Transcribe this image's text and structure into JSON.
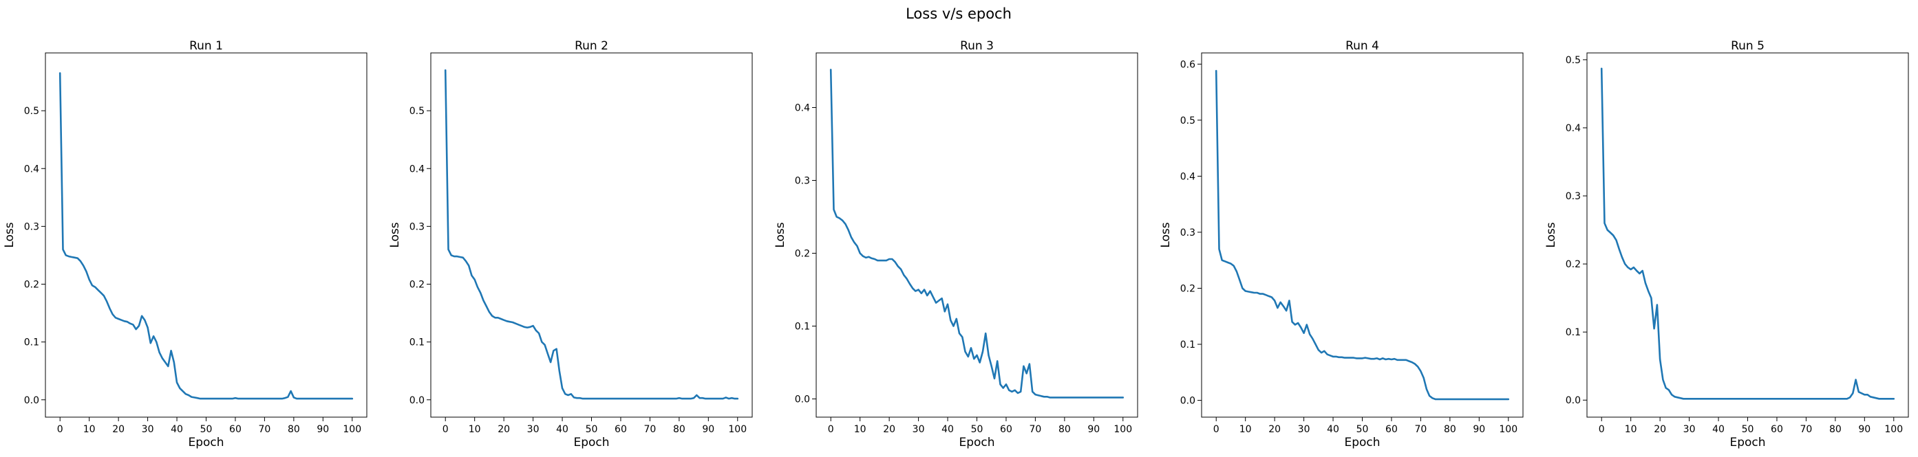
{
  "figure_title": "Loss v/s epoch",
  "chart_data": [
    {
      "type": "line",
      "title": "Run 1",
      "xlabel": "Epoch",
      "ylabel": "Loss",
      "xlim": [
        -5,
        105
      ],
      "ylim": [
        -0.03,
        0.6
      ],
      "grid": false,
      "legend": "none",
      "series_color": "#1f77b4",
      "xticks": [
        0,
        10,
        20,
        30,
        40,
        50,
        60,
        70,
        80,
        90,
        100
      ],
      "yticks": [
        0.0,
        0.1,
        0.2,
        0.3,
        0.4,
        0.5
      ],
      "ytick_labels": [
        "0.0",
        "0.1",
        "0.2",
        "0.3",
        "0.4",
        "0.5"
      ],
      "x": [
        0,
        1,
        2,
        3,
        4,
        5,
        6,
        7,
        8,
        9,
        10,
        11,
        12,
        13,
        14,
        15,
        16,
        17,
        18,
        19,
        20,
        21,
        22,
        23,
        24,
        25,
        26,
        27,
        28,
        29,
        30,
        31,
        32,
        33,
        34,
        35,
        36,
        37,
        38,
        39,
        40,
        41,
        42,
        43,
        44,
        45,
        46,
        47,
        48,
        49,
        50,
        51,
        52,
        53,
        54,
        55,
        56,
        57,
        58,
        59,
        60,
        61,
        62,
        63,
        64,
        65,
        66,
        67,
        68,
        69,
        70,
        71,
        72,
        73,
        74,
        75,
        76,
        77,
        78,
        79,
        80,
        81,
        82,
        83,
        84,
        85,
        86,
        87,
        88,
        89,
        90,
        91,
        92,
        93,
        94,
        95,
        96,
        97,
        98,
        99,
        100
      ],
      "y": [
        0.565,
        0.26,
        0.25,
        0.248,
        0.247,
        0.246,
        0.245,
        0.24,
        0.232,
        0.222,
        0.208,
        0.198,
        0.195,
        0.19,
        0.185,
        0.18,
        0.17,
        0.158,
        0.148,
        0.142,
        0.14,
        0.138,
        0.136,
        0.135,
        0.132,
        0.13,
        0.122,
        0.128,
        0.145,
        0.138,
        0.125,
        0.098,
        0.11,
        0.1,
        0.082,
        0.072,
        0.065,
        0.058,
        0.085,
        0.065,
        0.03,
        0.02,
        0.015,
        0.01,
        0.008,
        0.005,
        0.004,
        0.003,
        0.002,
        0.002,
        0.002,
        0.002,
        0.002,
        0.002,
        0.002,
        0.002,
        0.002,
        0.002,
        0.002,
        0.002,
        0.003,
        0.002,
        0.002,
        0.002,
        0.002,
        0.002,
        0.002,
        0.002,
        0.002,
        0.002,
        0.002,
        0.002,
        0.002,
        0.002,
        0.002,
        0.002,
        0.002,
        0.003,
        0.005,
        0.015,
        0.004,
        0.002,
        0.002,
        0.002,
        0.002,
        0.002,
        0.002,
        0.002,
        0.002,
        0.002,
        0.002,
        0.002,
        0.002,
        0.002,
        0.002,
        0.002,
        0.002,
        0.002,
        0.002,
        0.002,
        0.002
      ]
    },
    {
      "type": "line",
      "title": "Run 2",
      "xlabel": "Epoch",
      "ylabel": "Loss",
      "xlim": [
        -5,
        105
      ],
      "ylim": [
        -0.03,
        0.6
      ],
      "grid": false,
      "legend": "none",
      "series_color": "#1f77b4",
      "xticks": [
        0,
        10,
        20,
        30,
        40,
        50,
        60,
        70,
        80,
        90,
        100
      ],
      "yticks": [
        0.0,
        0.1,
        0.2,
        0.3,
        0.4,
        0.5
      ],
      "ytick_labels": [
        "0.0",
        "0.1",
        "0.2",
        "0.3",
        "0.4",
        "0.5"
      ],
      "x": [
        0,
        1,
        2,
        3,
        4,
        5,
        6,
        7,
        8,
        9,
        10,
        11,
        12,
        13,
        14,
        15,
        16,
        17,
        18,
        19,
        20,
        21,
        22,
        23,
        24,
        25,
        26,
        27,
        28,
        29,
        30,
        31,
        32,
        33,
        34,
        35,
        36,
        37,
        38,
        39,
        40,
        41,
        42,
        43,
        44,
        45,
        46,
        47,
        48,
        49,
        50,
        51,
        52,
        53,
        54,
        55,
        56,
        57,
        58,
        59,
        60,
        61,
        62,
        63,
        64,
        65,
        66,
        67,
        68,
        69,
        70,
        71,
        72,
        73,
        74,
        75,
        76,
        77,
        78,
        79,
        80,
        81,
        82,
        83,
        84,
        85,
        86,
        87,
        88,
        89,
        90,
        91,
        92,
        93,
        94,
        95,
        96,
        97,
        98,
        99,
        100
      ],
      "y": [
        0.57,
        0.26,
        0.25,
        0.248,
        0.248,
        0.247,
        0.246,
        0.24,
        0.232,
        0.215,
        0.208,
        0.195,
        0.185,
        0.172,
        0.162,
        0.152,
        0.145,
        0.142,
        0.142,
        0.14,
        0.138,
        0.136,
        0.135,
        0.134,
        0.132,
        0.13,
        0.128,
        0.126,
        0.125,
        0.126,
        0.128,
        0.12,
        0.115,
        0.1,
        0.095,
        0.08,
        0.065,
        0.085,
        0.088,
        0.05,
        0.02,
        0.01,
        0.008,
        0.01,
        0.004,
        0.003,
        0.003,
        0.002,
        0.002,
        0.002,
        0.002,
        0.002,
        0.002,
        0.002,
        0.002,
        0.002,
        0.002,
        0.002,
        0.002,
        0.002,
        0.002,
        0.002,
        0.002,
        0.002,
        0.002,
        0.002,
        0.002,
        0.002,
        0.002,
        0.002,
        0.002,
        0.002,
        0.002,
        0.002,
        0.002,
        0.002,
        0.002,
        0.002,
        0.002,
        0.002,
        0.003,
        0.002,
        0.002,
        0.002,
        0.002,
        0.003,
        0.008,
        0.003,
        0.003,
        0.002,
        0.002,
        0.002,
        0.002,
        0.002,
        0.002,
        0.002,
        0.004,
        0.002,
        0.003,
        0.002,
        0.002
      ]
    },
    {
      "type": "line",
      "title": "Run 3",
      "xlabel": "Epoch",
      "ylabel": "Loss",
      "xlim": [
        -5,
        105
      ],
      "ylim": [
        -0.025,
        0.475
      ],
      "grid": false,
      "legend": "none",
      "series_color": "#1f77b4",
      "xticks": [
        0,
        10,
        20,
        30,
        40,
        50,
        60,
        70,
        80,
        90,
        100
      ],
      "yticks": [
        0.0,
        0.1,
        0.2,
        0.3,
        0.4
      ],
      "ytick_labels": [
        "0.0",
        "0.1",
        "0.2",
        "0.3",
        "0.4"
      ],
      "x": [
        0,
        1,
        2,
        3,
        4,
        5,
        6,
        7,
        8,
        9,
        10,
        11,
        12,
        13,
        14,
        15,
        16,
        17,
        18,
        19,
        20,
        21,
        22,
        23,
        24,
        25,
        26,
        27,
        28,
        29,
        30,
        31,
        32,
        33,
        34,
        35,
        36,
        37,
        38,
        39,
        40,
        41,
        42,
        43,
        44,
        45,
        46,
        47,
        48,
        49,
        50,
        51,
        52,
        53,
        54,
        55,
        56,
        57,
        58,
        59,
        60,
        61,
        62,
        63,
        64,
        65,
        66,
        67,
        68,
        69,
        70,
        71,
        72,
        73,
        74,
        75,
        76,
        77,
        78,
        79,
        80,
        81,
        82,
        83,
        84,
        85,
        86,
        87,
        88,
        89,
        90,
        91,
        92,
        93,
        94,
        95,
        96,
        97,
        98,
        99,
        100
      ],
      "y": [
        0.452,
        0.26,
        0.25,
        0.248,
        0.245,
        0.24,
        0.232,
        0.222,
        0.215,
        0.21,
        0.2,
        0.196,
        0.194,
        0.195,
        0.193,
        0.192,
        0.19,
        0.19,
        0.19,
        0.19,
        0.192,
        0.192,
        0.188,
        0.182,
        0.178,
        0.17,
        0.165,
        0.158,
        0.152,
        0.148,
        0.15,
        0.145,
        0.15,
        0.142,
        0.148,
        0.14,
        0.132,
        0.135,
        0.138,
        0.12,
        0.13,
        0.108,
        0.1,
        0.11,
        0.09,
        0.085,
        0.065,
        0.058,
        0.07,
        0.055,
        0.06,
        0.05,
        0.065,
        0.09,
        0.06,
        0.045,
        0.028,
        0.052,
        0.02,
        0.015,
        0.02,
        0.012,
        0.01,
        0.012,
        0.008,
        0.01,
        0.045,
        0.035,
        0.048,
        0.01,
        0.006,
        0.005,
        0.004,
        0.003,
        0.003,
        0.002,
        0.002,
        0.002,
        0.002,
        0.002,
        0.002,
        0.002,
        0.002,
        0.002,
        0.002,
        0.002,
        0.002,
        0.002,
        0.002,
        0.002,
        0.002,
        0.002,
        0.002,
        0.002,
        0.002,
        0.002,
        0.002,
        0.002,
        0.002,
        0.002,
        0.002
      ]
    },
    {
      "type": "line",
      "title": "Run 4",
      "xlabel": "Epoch",
      "ylabel": "Loss",
      "xlim": [
        -5,
        105
      ],
      "ylim": [
        -0.03,
        0.62
      ],
      "grid": false,
      "legend": "none",
      "series_color": "#1f77b4",
      "xticks": [
        0,
        10,
        20,
        30,
        40,
        50,
        60,
        70,
        80,
        90,
        100
      ],
      "yticks": [
        0.0,
        0.1,
        0.2,
        0.3,
        0.4,
        0.5,
        0.6
      ],
      "ytick_labels": [
        "0.0",
        "0.1",
        "0.2",
        "0.3",
        "0.4",
        "0.5",
        "0.6"
      ],
      "x": [
        0,
        1,
        2,
        3,
        4,
        5,
        6,
        7,
        8,
        9,
        10,
        11,
        12,
        13,
        14,
        15,
        16,
        17,
        18,
        19,
        20,
        21,
        22,
        23,
        24,
        25,
        26,
        27,
        28,
        29,
        30,
        31,
        32,
        33,
        34,
        35,
        36,
        37,
        38,
        39,
        40,
        41,
        42,
        43,
        44,
        45,
        46,
        47,
        48,
        49,
        50,
        51,
        52,
        53,
        54,
        55,
        56,
        57,
        58,
        59,
        60,
        61,
        62,
        63,
        64,
        65,
        66,
        67,
        68,
        69,
        70,
        71,
        72,
        73,
        74,
        75,
        76,
        77,
        78,
        79,
        80,
        81,
        82,
        83,
        84,
        85,
        86,
        87,
        88,
        89,
        90,
        91,
        92,
        93,
        94,
        95,
        96,
        97,
        98,
        99,
        100
      ],
      "y": [
        0.588,
        0.27,
        0.25,
        0.248,
        0.246,
        0.244,
        0.24,
        0.23,
        0.215,
        0.2,
        0.195,
        0.194,
        0.193,
        0.192,
        0.192,
        0.19,
        0.19,
        0.188,
        0.186,
        0.184,
        0.178,
        0.165,
        0.175,
        0.168,
        0.16,
        0.178,
        0.14,
        0.135,
        0.138,
        0.13,
        0.12,
        0.135,
        0.118,
        0.11,
        0.1,
        0.09,
        0.085,
        0.088,
        0.082,
        0.08,
        0.078,
        0.078,
        0.077,
        0.077,
        0.076,
        0.076,
        0.076,
        0.076,
        0.075,
        0.075,
        0.075,
        0.076,
        0.075,
        0.074,
        0.074,
        0.075,
        0.073,
        0.075,
        0.073,
        0.074,
        0.073,
        0.074,
        0.072,
        0.072,
        0.072,
        0.072,
        0.07,
        0.068,
        0.065,
        0.06,
        0.052,
        0.04,
        0.02,
        0.008,
        0.004,
        0.002,
        0.002,
        0.002,
        0.002,
        0.002,
        0.002,
        0.002,
        0.002,
        0.002,
        0.002,
        0.002,
        0.002,
        0.002,
        0.002,
        0.002,
        0.002,
        0.002,
        0.002,
        0.002,
        0.002,
        0.002,
        0.002,
        0.002,
        0.002,
        0.002,
        0.002
      ]
    },
    {
      "type": "line",
      "title": "Run 5",
      "xlabel": "Epoch",
      "ylabel": "Loss",
      "xlim": [
        -5,
        105
      ],
      "ylim": [
        -0.025,
        0.51
      ],
      "grid": false,
      "legend": "none",
      "series_color": "#1f77b4",
      "xticks": [
        0,
        10,
        20,
        30,
        40,
        50,
        60,
        70,
        80,
        90,
        100
      ],
      "yticks": [
        0.0,
        0.1,
        0.2,
        0.3,
        0.4,
        0.5
      ],
      "ytick_labels": [
        "0.0",
        "0.1",
        "0.2",
        "0.3",
        "0.4",
        "0.5"
      ],
      "x": [
        0,
        1,
        2,
        3,
        4,
        5,
        6,
        7,
        8,
        9,
        10,
        11,
        12,
        13,
        14,
        15,
        16,
        17,
        18,
        19,
        20,
        21,
        22,
        23,
        24,
        25,
        26,
        27,
        28,
        29,
        30,
        31,
        32,
        33,
        34,
        35,
        36,
        37,
        38,
        39,
        40,
        41,
        42,
        43,
        44,
        45,
        46,
        47,
        48,
        49,
        50,
        51,
        52,
        53,
        54,
        55,
        56,
        57,
        58,
        59,
        60,
        61,
        62,
        63,
        64,
        65,
        66,
        67,
        68,
        69,
        70,
        71,
        72,
        73,
        74,
        75,
        76,
        77,
        78,
        79,
        80,
        81,
        82,
        83,
        84,
        85,
        86,
        87,
        88,
        89,
        90,
        91,
        92,
        93,
        94,
        95,
        96,
        97,
        98,
        99,
        100
      ],
      "y": [
        0.487,
        0.26,
        0.25,
        0.246,
        0.242,
        0.235,
        0.222,
        0.21,
        0.2,
        0.195,
        0.192,
        0.195,
        0.19,
        0.186,
        0.19,
        0.172,
        0.16,
        0.15,
        0.105,
        0.14,
        0.06,
        0.03,
        0.018,
        0.015,
        0.008,
        0.005,
        0.004,
        0.003,
        0.002,
        0.002,
        0.002,
        0.002,
        0.002,
        0.002,
        0.002,
        0.002,
        0.002,
        0.002,
        0.002,
        0.002,
        0.002,
        0.002,
        0.002,
        0.002,
        0.002,
        0.002,
        0.002,
        0.002,
        0.002,
        0.002,
        0.002,
        0.002,
        0.002,
        0.002,
        0.002,
        0.002,
        0.002,
        0.002,
        0.002,
        0.002,
        0.002,
        0.002,
        0.002,
        0.002,
        0.002,
        0.002,
        0.002,
        0.002,
        0.002,
        0.002,
        0.002,
        0.002,
        0.002,
        0.002,
        0.002,
        0.002,
        0.002,
        0.002,
        0.002,
        0.002,
        0.002,
        0.002,
        0.002,
        0.002,
        0.002,
        0.004,
        0.01,
        0.03,
        0.012,
        0.01,
        0.008,
        0.008,
        0.005,
        0.004,
        0.003,
        0.002,
        0.002,
        0.002,
        0.002,
        0.002,
        0.002
      ]
    }
  ]
}
